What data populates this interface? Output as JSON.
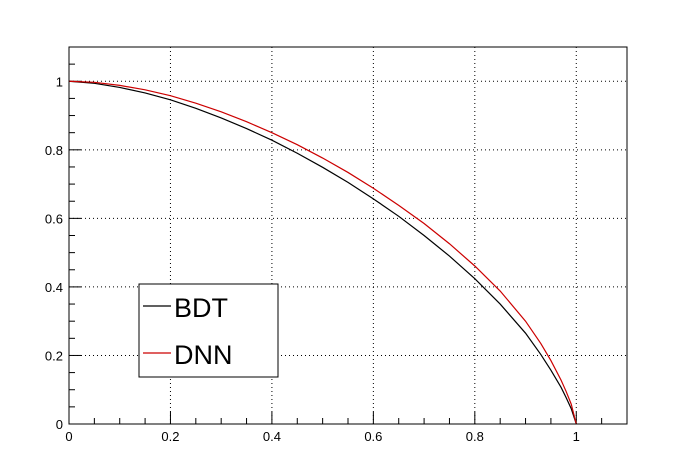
{
  "chart_data": {
    "type": "line",
    "title": "",
    "xlabel": "",
    "ylabel": "",
    "xlim": [
      0,
      1.1
    ],
    "ylim": [
      0,
      1.1
    ],
    "grid": true,
    "x_ticks": [
      "0",
      "0.2",
      "0.4",
      "0.6",
      "0.8",
      "1"
    ],
    "y_ticks": [
      "0",
      "0.2",
      "0.4",
      "0.6",
      "0.8",
      "1"
    ],
    "legend_placement": "lower-left",
    "series": [
      {
        "name": "BDT",
        "color": "#000000",
        "x": [
          0,
          0.05,
          0.1,
          0.15,
          0.2,
          0.25,
          0.3,
          0.35,
          0.4,
          0.45,
          0.5,
          0.55,
          0.6,
          0.65,
          0.7,
          0.75,
          0.8,
          0.85,
          0.9,
          0.93,
          0.95,
          0.97,
          0.98,
          0.99,
          1.0
        ],
        "y": [
          1.0,
          0.994,
          0.982,
          0.966,
          0.946,
          0.921,
          0.893,
          0.862,
          0.828,
          0.79,
          0.749,
          0.705,
          0.657,
          0.606,
          0.55,
          0.49,
          0.424,
          0.35,
          0.265,
          0.203,
          0.157,
          0.107,
          0.077,
          0.045,
          0.0
        ]
      },
      {
        "name": "DNN",
        "color": "#cc0000",
        "x": [
          0,
          0.05,
          0.1,
          0.15,
          0.2,
          0.25,
          0.3,
          0.35,
          0.4,
          0.45,
          0.5,
          0.55,
          0.6,
          0.65,
          0.7,
          0.75,
          0.8,
          0.85,
          0.9,
          0.93,
          0.95,
          0.97,
          0.98,
          0.99,
          1.0
        ],
        "y": [
          1.0,
          0.997,
          0.988,
          0.975,
          0.958,
          0.936,
          0.911,
          0.882,
          0.85,
          0.815,
          0.776,
          0.734,
          0.688,
          0.638,
          0.585,
          0.526,
          0.461,
          0.388,
          0.3,
          0.235,
          0.185,
          0.128,
          0.095,
          0.058,
          0.0
        ]
      }
    ]
  }
}
